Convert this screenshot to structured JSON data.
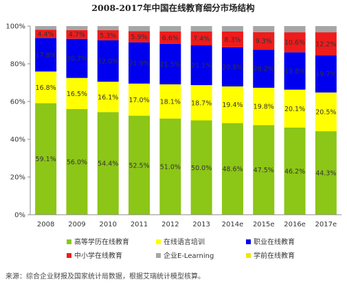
{
  "chart_data": {
    "type": "bar",
    "stacked": true,
    "title": "2008-2017年中国在线教育细分市场结构",
    "categories": [
      "2008",
      "2009",
      "2010",
      "2011",
      "2012",
      "2013",
      "2014e",
      "2015e",
      "2016e",
      "2017e"
    ],
    "ylim": [
      0,
      100
    ],
    "yticks": [
      "0%",
      "20%",
      "40%",
      "60%",
      "80%",
      "100%"
    ],
    "grid": false,
    "legend_position": "bottom",
    "series": [
      {
        "name": "高等学历在线教育",
        "color": "#8cc617",
        "values": [
          59.1,
          56.0,
          54.4,
          52.5,
          51.0,
          50.0,
          48.6,
          47.5,
          46.2,
          44.3
        ],
        "labels": [
          "59.1%",
          "56.0%",
          "54.4%",
          "52.5%",
          "51.0%",
          "50.0%",
          "48.6%",
          "47.5%",
          "46.2%",
          "44.3%"
        ]
      },
      {
        "name": "在线语言培训",
        "color": "#ffff00",
        "values": [
          16.8,
          16.5,
          16.1,
          17.0,
          18.1,
          18.7,
          19.4,
          19.8,
          20.1,
          20.5
        ],
        "labels": [
          "16.8%",
          "16.5%",
          "16.1%",
          "17.0%",
          "18.1%",
          "18.7%",
          "19.4%",
          "19.8%",
          "20.1%",
          "20.5%"
        ]
      },
      {
        "name": "职业在线教育",
        "color": "#0000ee",
        "values": [
          17.8,
          20.7,
          22.0,
          21.9,
          21.5,
          21.1,
          20.8,
          20.2,
          19.8,
          19.7
        ],
        "labels": [
          "17.8%",
          "20.7%",
          "22.0%",
          "21.9%",
          "21.5%",
          "21.1%",
          "20.8%",
          "20.2%",
          "19.8%",
          "19.7%"
        ]
      },
      {
        "name": "中小学在线教育",
        "color": "#ee1c1c",
        "values": [
          4.4,
          4.7,
          5.3,
          5.9,
          6.6,
          7.4,
          8.3,
          9.3,
          10.6,
          12.2
        ],
        "labels": [
          "4.4%",
          "4.7%",
          "5.3%",
          "5.9%",
          "6.6%",
          "7.4%",
          "8.3%",
          "9.3%",
          "10.6%",
          "12.2%"
        ]
      },
      {
        "name": "企业E-Learning",
        "color": "#a6a6a6",
        "values": [
          1.9,
          2.1,
          2.2,
          2.7,
          2.8,
          2.8,
          2.9,
          3.2,
          3.3,
          3.3
        ],
        "labels": []
      },
      {
        "name": "学前在线教育",
        "color": "#f2e600",
        "values": [
          0,
          0,
          0,
          0,
          0,
          0,
          0,
          0,
          0,
          0
        ],
        "labels": []
      }
    ]
  },
  "source_note": "来源：综合企业财报及国家统计局数据，根据艾瑞统计模型核算。"
}
